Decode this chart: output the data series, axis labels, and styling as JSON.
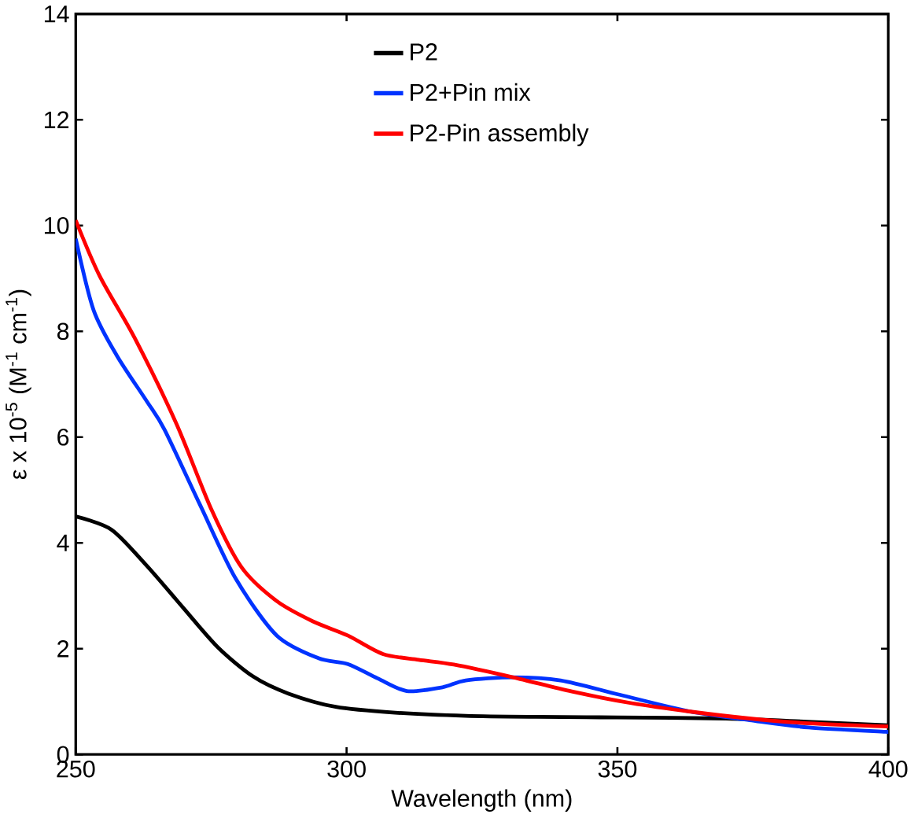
{
  "chart_data": {
    "type": "line",
    "xlabel": "Wavelength (nm)",
    "ylabel": "ε x 10$^{-5}$ (M$^{-1}$ cm$^{-1}$)",
    "xlim": [
      250,
      400
    ],
    "ylim": [
      0,
      14
    ],
    "xticks": [
      250,
      300,
      350,
      400
    ],
    "yticks": [
      0,
      2,
      4,
      6,
      8,
      10,
      12,
      14
    ],
    "grid": false,
    "legend": "top",
    "marker": "none",
    "line_style": "solid",
    "series": [
      {
        "name": "P2",
        "color": "#000000",
        "x": [
          250,
          256.6,
          263.1,
          269.7,
          276.2,
          282.8,
          289.3,
          298,
          309,
          322,
          335,
          350,
          370,
          385,
          400
        ],
        "values": [
          4.5,
          4.25,
          3.57,
          2.79,
          2.03,
          1.47,
          1.15,
          0.9,
          0.79,
          0.73,
          0.71,
          0.7,
          0.68,
          0.62,
          0.55
        ]
      },
      {
        "name": "P2+Pin mix",
        "color": "#0033ff",
        "x": [
          250,
          253.3,
          257.6,
          263.1,
          266.4,
          272.9,
          279.5,
          287.1,
          294.8,
          300.2,
          305.7,
          311.1,
          317.7,
          322,
          330.7,
          339.5,
          350.4,
          363.5,
          374.4,
          385.3,
          399.5,
          400
        ],
        "values": [
          9.75,
          8.4,
          7.54,
          6.68,
          6.14,
          4.73,
          3.33,
          2.25,
          1.82,
          1.71,
          1.44,
          1.2,
          1.27,
          1.4,
          1.46,
          1.4,
          1.13,
          0.81,
          0.65,
          0.51,
          0.43,
          0.43
        ]
      },
      {
        "name": "P2-Pin assembly",
        "color": "#ff0000",
        "x": [
          250,
          254.4,
          260.9,
          268.6,
          275.1,
          280.6,
          287.1,
          293.7,
          300.2,
          306.7,
          313.3,
          319.8,
          330.7,
          341.6,
          352.6,
          363.5,
          374.4,
          385.3,
          400
        ],
        "values": [
          10.1,
          9.05,
          7.87,
          6.25,
          4.62,
          3.54,
          2.9,
          2.52,
          2.25,
          1.9,
          1.79,
          1.7,
          1.46,
          1.19,
          0.97,
          0.81,
          0.68,
          0.59,
          0.53
        ]
      }
    ]
  }
}
